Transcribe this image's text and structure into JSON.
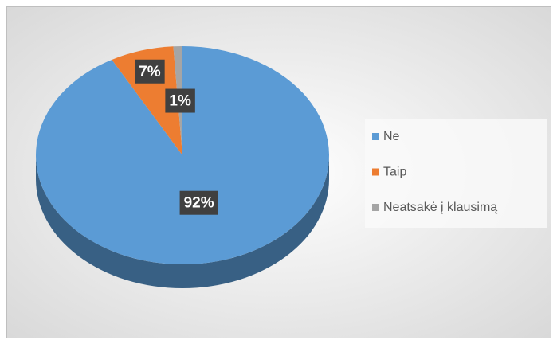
{
  "chart_data": {
    "type": "pie",
    "categories": [
      "Ne",
      "Taip",
      "Neatsakė į klausimą"
    ],
    "values": [
      92,
      7,
      1
    ],
    "value_labels": [
      "92%",
      "7%",
      "1%"
    ],
    "colors": [
      "#5b9bd5",
      "#ed7d31",
      "#a5a5a5"
    ],
    "legend": "right"
  }
}
